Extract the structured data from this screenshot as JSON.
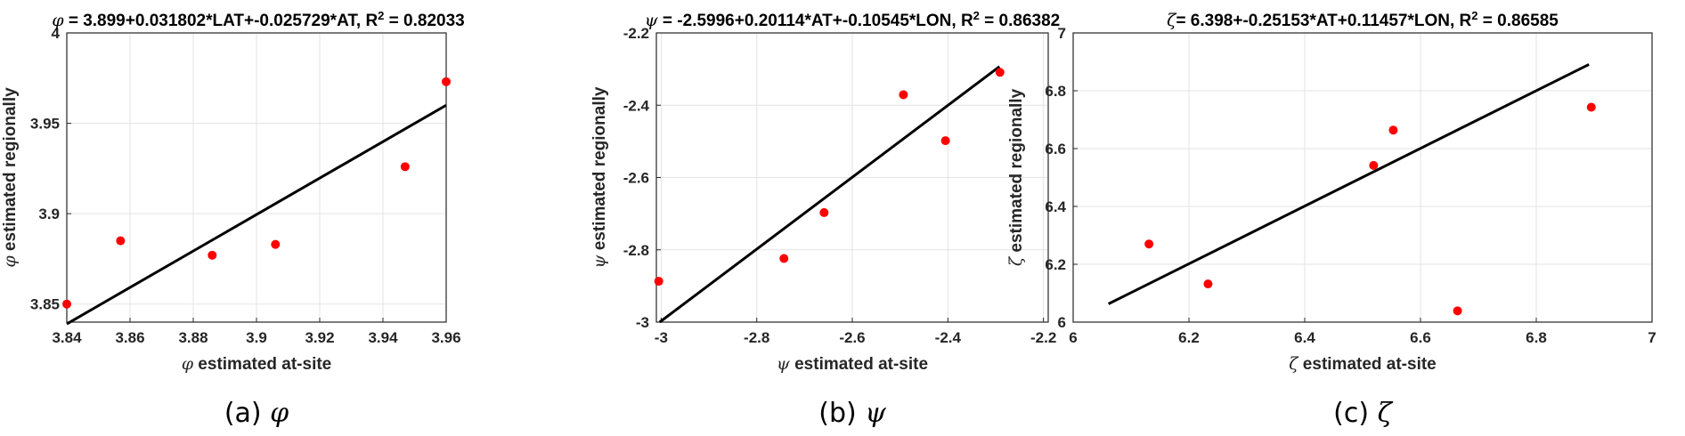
{
  "chart_data": [
    {
      "type": "scatter",
      "symbol": "φ",
      "title_rest": " = 3.899+0.031802*LAT+-0.025729*AT, R",
      "title_tail": " = 0.82033",
      "xlabel_rest": " estimated at-site",
      "ylabel_rest": " estimated regionally",
      "caption_prefix": "(a) ",
      "xlim": [
        3.84,
        3.96
      ],
      "ylim": [
        3.84,
        4.0
      ],
      "xticks": [
        "3.84",
        "3.86",
        "3.88",
        "3.9",
        "3.92",
        "3.94",
        "3.96"
      ],
      "yticks": [
        "3.85",
        "3.9",
        "3.95",
        "4"
      ],
      "points": [
        {
          "x": 3.84,
          "y": 3.85
        },
        {
          "x": 3.857,
          "y": 3.885
        },
        {
          "x": 3.886,
          "y": 3.877
        },
        {
          "x": 3.906,
          "y": 3.883
        },
        {
          "x": 3.947,
          "y": 3.926
        },
        {
          "x": 3.96,
          "y": 3.973
        }
      ],
      "fit_line": [
        [
          3.84,
          3.839
        ],
        [
          3.96,
          3.96
        ]
      ],
      "grid": true,
      "marker_color": "#ff0000",
      "line_color": "#000000"
    },
    {
      "type": "scatter",
      "symbol": "ψ",
      "title_rest": " = -2.5996+0.20114*AT+-0.10545*LON, R",
      "title_tail": " = 0.86382",
      "xlabel_rest": " estimated at-site",
      "ylabel_rest": " estimated regionally",
      "caption_prefix": "(b) ",
      "xlim": [
        -3.01,
        -2.19
      ],
      "ylim": [
        -3.0,
        -2.2
      ],
      "xticks": [
        "-3",
        "-2.8",
        "-2.6",
        "-2.4",
        "-2.2"
      ],
      "yticks": [
        "-3",
        "-2.8",
        "-2.6",
        "-2.4",
        "-2.2"
      ],
      "points": [
        {
          "x": -3.005,
          "y": -2.887
        },
        {
          "x": -2.743,
          "y": -2.824
        },
        {
          "x": -2.659,
          "y": -2.697
        },
        {
          "x": -2.493,
          "y": -2.371
        },
        {
          "x": -2.405,
          "y": -2.498
        },
        {
          "x": -2.291,
          "y": -2.309
        }
      ],
      "fit_line": [
        [
          -3.003,
          -3.0
        ],
        [
          -2.292,
          -2.293
        ]
      ],
      "grid": true,
      "marker_color": "#ff0000",
      "line_color": "#000000"
    },
    {
      "type": "scatter",
      "symbol": "ζ",
      "title_rest": "= 6.398+-0.25153*AT+0.11457*LON, R",
      "title_tail": " = 0.86585",
      "xlabel_rest": " estimated at-site",
      "ylabel_rest": " estimated regionally",
      "caption_prefix": "(c) ",
      "xlim": [
        6.0,
        7.0
      ],
      "ylim": [
        6.0,
        7.0
      ],
      "xticks": [
        "6",
        "6.2",
        "6.4",
        "6.6",
        "6.8",
        "7"
      ],
      "yticks": [
        "6",
        "6.2",
        "6.4",
        "6.6",
        "6.8",
        "7"
      ],
      "points": [
        {
          "x": 6.664,
          "y": 6.039
        },
        {
          "x": 6.131,
          "y": 6.27
        },
        {
          "x": 6.233,
          "y": 6.132
        },
        {
          "x": 6.519,
          "y": 6.542
        },
        {
          "x": 6.553,
          "y": 6.664
        },
        {
          "x": 6.895,
          "y": 6.743
        }
      ],
      "fit_line": [
        [
          6.061,
          6.063
        ],
        [
          6.891,
          6.891
        ]
      ],
      "grid": true,
      "marker_color": "#ff0000",
      "line_color": "#000000"
    }
  ]
}
